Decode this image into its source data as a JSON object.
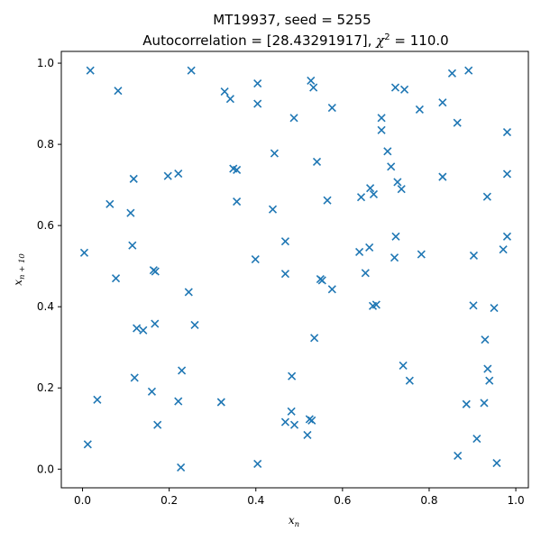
{
  "chart_data": {
    "type": "scatter",
    "title_line1": "MT19937, seed = 5255",
    "title_line2_prefix": "Autocorrelation = [28.43291917], ",
    "title_chi_symbol": "χ",
    "title_chi_exponent": "2",
    "title_chi_value": " = 110.0",
    "xlabel_base": "x",
    "xlabel_sub": "n",
    "ylabel_base": "x",
    "ylabel_sub": "n + 10",
    "xlim": [
      -0.049,
      1.029
    ],
    "ylim": [
      -0.046,
      1.029
    ],
    "xticks": [
      0.0,
      0.2,
      0.4,
      0.6,
      0.8,
      1.0
    ],
    "yticks": [
      0.0,
      0.2,
      0.4,
      0.6,
      0.8,
      1.0
    ],
    "xtick_labels": [
      "0.0",
      "0.2",
      "0.4",
      "0.6",
      "0.8",
      "1.0"
    ],
    "ytick_labels": [
      "0.0",
      "0.2",
      "0.4",
      "0.6",
      "0.8",
      "1.0"
    ],
    "grid": false,
    "marker": "x",
    "marker_color": "#1f77b4",
    "points": [
      [
        0.018,
        0.982
      ],
      [
        0.082,
        0.932
      ],
      [
        0.251,
        0.982
      ],
      [
        0.328,
        0.93
      ],
      [
        0.341,
        0.912
      ],
      [
        0.404,
        0.95
      ],
      [
        0.404,
        0.9
      ],
      [
        0.527,
        0.957
      ],
      [
        0.533,
        0.94
      ],
      [
        0.488,
        0.865
      ],
      [
        0.576,
        0.89
      ],
      [
        0.722,
        0.94
      ],
      [
        0.743,
        0.935
      ],
      [
        0.853,
        0.975
      ],
      [
        0.891,
        0.982
      ],
      [
        0.831,
        0.903
      ],
      [
        0.778,
        0.886
      ],
      [
        0.69,
        0.865
      ],
      [
        0.69,
        0.835
      ],
      [
        0.865,
        0.853
      ],
      [
        0.98,
        0.83
      ],
      [
        0.443,
        0.778
      ],
      [
        0.541,
        0.757
      ],
      [
        0.704,
        0.783
      ],
      [
        0.712,
        0.745
      ],
      [
        0.348,
        0.74
      ],
      [
        0.356,
        0.737
      ],
      [
        0.197,
        0.722
      ],
      [
        0.221,
        0.728
      ],
      [
        0.118,
        0.715
      ],
      [
        0.727,
        0.707
      ],
      [
        0.736,
        0.69
      ],
      [
        0.664,
        0.692
      ],
      [
        0.672,
        0.677
      ],
      [
        0.643,
        0.67
      ],
      [
        0.565,
        0.662
      ],
      [
        0.831,
        0.72
      ],
      [
        0.934,
        0.671
      ],
      [
        0.98,
        0.727
      ],
      [
        0.063,
        0.653
      ],
      [
        0.111,
        0.631
      ],
      [
        0.356,
        0.659
      ],
      [
        0.439,
        0.64
      ],
      [
        0.004,
        0.533
      ],
      [
        0.115,
        0.551
      ],
      [
        0.468,
        0.561
      ],
      [
        0.639,
        0.535
      ],
      [
        0.662,
        0.546
      ],
      [
        0.723,
        0.573
      ],
      [
        0.72,
        0.521
      ],
      [
        0.782,
        0.529
      ],
      [
        0.903,
        0.526
      ],
      [
        0.971,
        0.541
      ],
      [
        0.98,
        0.573
      ],
      [
        0.077,
        0.47
      ],
      [
        0.164,
        0.49
      ],
      [
        0.168,
        0.487
      ],
      [
        0.399,
        0.517
      ],
      [
        0.468,
        0.481
      ],
      [
        0.549,
        0.468
      ],
      [
        0.553,
        0.465
      ],
      [
        0.576,
        0.443
      ],
      [
        0.653,
        0.483
      ],
      [
        0.67,
        0.402
      ],
      [
        0.678,
        0.405
      ],
      [
        0.245,
        0.436
      ],
      [
        0.902,
        0.403
      ],
      [
        0.95,
        0.397
      ],
      [
        0.125,
        0.347
      ],
      [
        0.14,
        0.342
      ],
      [
        0.167,
        0.358
      ],
      [
        0.259,
        0.355
      ],
      [
        0.535,
        0.323
      ],
      [
        0.929,
        0.319
      ],
      [
        0.74,
        0.255
      ],
      [
        0.755,
        0.218
      ],
      [
        0.935,
        0.247
      ],
      [
        0.939,
        0.218
      ],
      [
        0.12,
        0.225
      ],
      [
        0.16,
        0.191
      ],
      [
        0.229,
        0.243
      ],
      [
        0.483,
        0.229
      ],
      [
        0.221,
        0.167
      ],
      [
        0.32,
        0.165
      ],
      [
        0.034,
        0.171
      ],
      [
        0.173,
        0.109
      ],
      [
        0.468,
        0.116
      ],
      [
        0.482,
        0.142
      ],
      [
        0.489,
        0.109
      ],
      [
        0.524,
        0.123
      ],
      [
        0.529,
        0.12
      ],
      [
        0.519,
        0.084
      ],
      [
        0.886,
        0.16
      ],
      [
        0.927,
        0.163
      ],
      [
        0.012,
        0.061
      ],
      [
        0.91,
        0.075
      ],
      [
        0.227,
        0.004
      ],
      [
        0.404,
        0.013
      ],
      [
        0.866,
        0.033
      ],
      [
        0.956,
        0.015
      ]
    ]
  }
}
